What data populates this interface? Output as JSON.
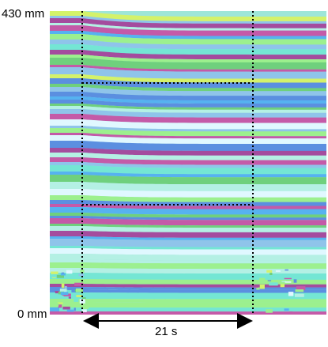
{
  "axis_labels": {
    "top": "430 mm",
    "bottom": "0 mm"
  },
  "duration_label": "21 s",
  "colors": {
    "bands": [
      "#9cf08e",
      "#74e6d4",
      "#8fc4ea",
      "#5b8fe0",
      "#c45aa8",
      "#a44c9e",
      "#d4f26a",
      "#e0f8ff",
      "#56b2f0",
      "#b4f0e4",
      "#6fd07d"
    ],
    "guide_lines": "#000000",
    "arrow": "#000000"
  }
}
